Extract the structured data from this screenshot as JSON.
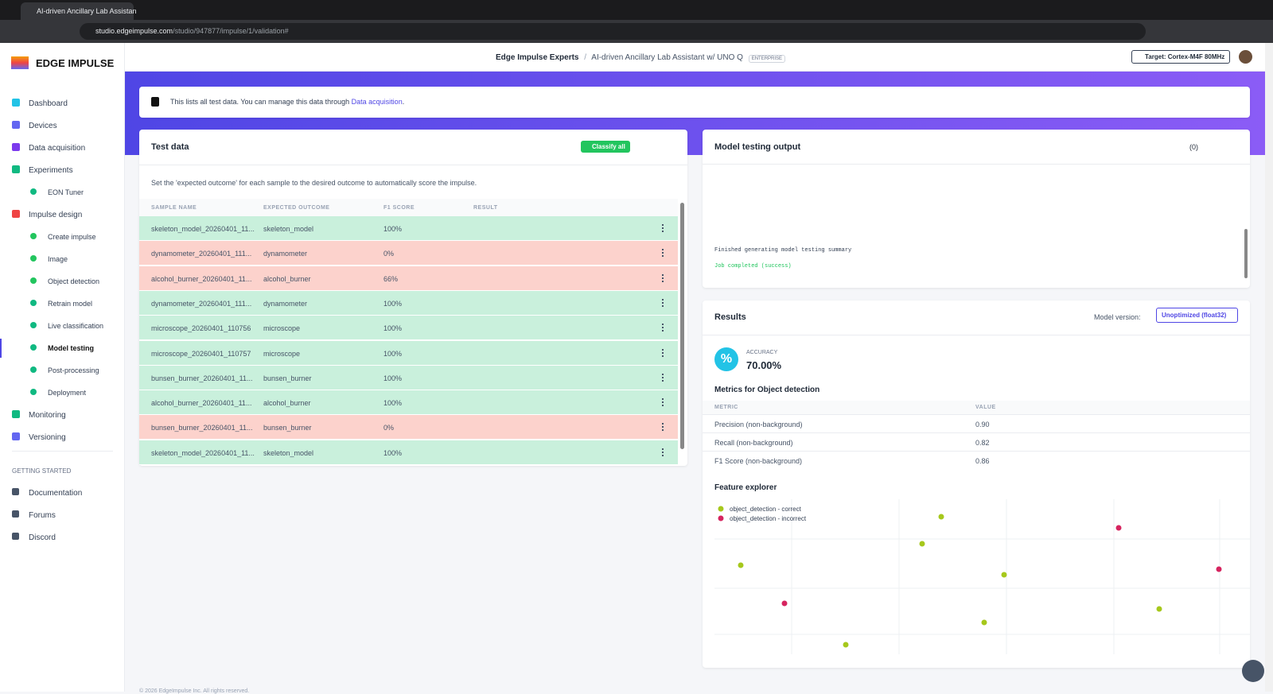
{
  "browser": {
    "tab_title": "AI-driven Ancillary Lab Assistan",
    "url_host": "studio.edgeimpulse.com",
    "url_path": "/studio/947877/impulse/1/validation#"
  },
  "sidebar": {
    "logo": "EDGE IMPULSE",
    "nav": [
      {
        "label": "Dashboard"
      },
      {
        "label": "Devices"
      },
      {
        "label": "Data acquisition"
      },
      {
        "label": "Experiments",
        "children": [
          {
            "label": "EON Tuner"
          }
        ]
      },
      {
        "label": "Impulse design",
        "children": [
          {
            "label": "Create impulse"
          },
          {
            "label": "Image"
          },
          {
            "label": "Object detection"
          },
          {
            "label": "Retrain model"
          },
          {
            "label": "Live classification"
          },
          {
            "label": "Model testing",
            "active": true
          },
          {
            "label": "Post-processing"
          },
          {
            "label": "Deployment"
          }
        ]
      },
      {
        "label": "Monitoring"
      },
      {
        "label": "Versioning"
      }
    ],
    "section": "GETTING STARTED",
    "links": [
      "Documentation",
      "Forums",
      "Discord"
    ]
  },
  "header": {
    "org": "Edge Impulse Experts",
    "separator": "/",
    "project": "AI-driven Ancillary Lab Assistant w/ UNO Q",
    "badge": "ENTERPRISE",
    "target": "Target: Cortex-M4F 80MHz"
  },
  "banner": {
    "text": "This lists all test data. You can manage this data through ",
    "link": "Data acquisition",
    "end": "."
  },
  "test_data": {
    "title": "Test data",
    "button": "Classify all",
    "description": "Set the 'expected outcome' for each sample to the desired outcome to automatically score the impulse.",
    "columns": [
      "SAMPLE NAME",
      "EXPECTED OUTCOME",
      "F1 SCORE",
      "RESULT"
    ],
    "rows": [
      {
        "name": "skeleton_model_20260401_11...",
        "expected": "skeleton_model",
        "f1": "100%",
        "correct": true
      },
      {
        "name": "dynamometer_20260401_111...",
        "expected": "dynamometer",
        "f1": "0%",
        "correct": false
      },
      {
        "name": "alcohol_burner_20260401_11...",
        "expected": "alcohol_burner",
        "f1": "66%",
        "correct": false
      },
      {
        "name": "dynamometer_20260401_111...",
        "expected": "dynamometer",
        "f1": "100%",
        "correct": true
      },
      {
        "name": "microscope_20260401_110756",
        "expected": "microscope",
        "f1": "100%",
        "correct": true
      },
      {
        "name": "microscope_20260401_110757",
        "expected": "microscope",
        "f1": "100%",
        "correct": true
      },
      {
        "name": "bunsen_burner_20260401_11...",
        "expected": "bunsen_burner",
        "f1": "100%",
        "correct": true
      },
      {
        "name": "alcohol_burner_20260401_11...",
        "expected": "alcohol_burner",
        "f1": "100%",
        "correct": true
      },
      {
        "name": "bunsen_burner_20260401_11...",
        "expected": "bunsen_burner",
        "f1": "0%",
        "correct": false
      },
      {
        "name": "skeleton_model_20260401_11...",
        "expected": "skeleton_model",
        "f1": "100%",
        "correct": true
      }
    ]
  },
  "output": {
    "title": "Model testing output",
    "count": "(0)",
    "log": [
      "Finished generating model testing summary",
      "Job completed (success)"
    ]
  },
  "results": {
    "title": "Results",
    "version_label": "Model version:",
    "version": "Unoptimized (float32)",
    "accuracy_label": "ACCURACY",
    "accuracy": "70.00%",
    "metrics_title": "Metrics for Object detection",
    "metric_columns": [
      "METRIC",
      "VALUE"
    ],
    "metrics": [
      {
        "metric": "Precision (non-background)",
        "value": "0.90"
      },
      {
        "metric": "Recall (non-background)",
        "value": "0.82"
      },
      {
        "metric": "F1 Score (non-background)",
        "value": "0.86"
      }
    ],
    "explorer_title": "Feature explorer",
    "legend": [
      "object_detection - correct",
      "object_detection - incorrect"
    ]
  },
  "footer": "© 2026 EdgeImpulse Inc. All rights reserved."
}
